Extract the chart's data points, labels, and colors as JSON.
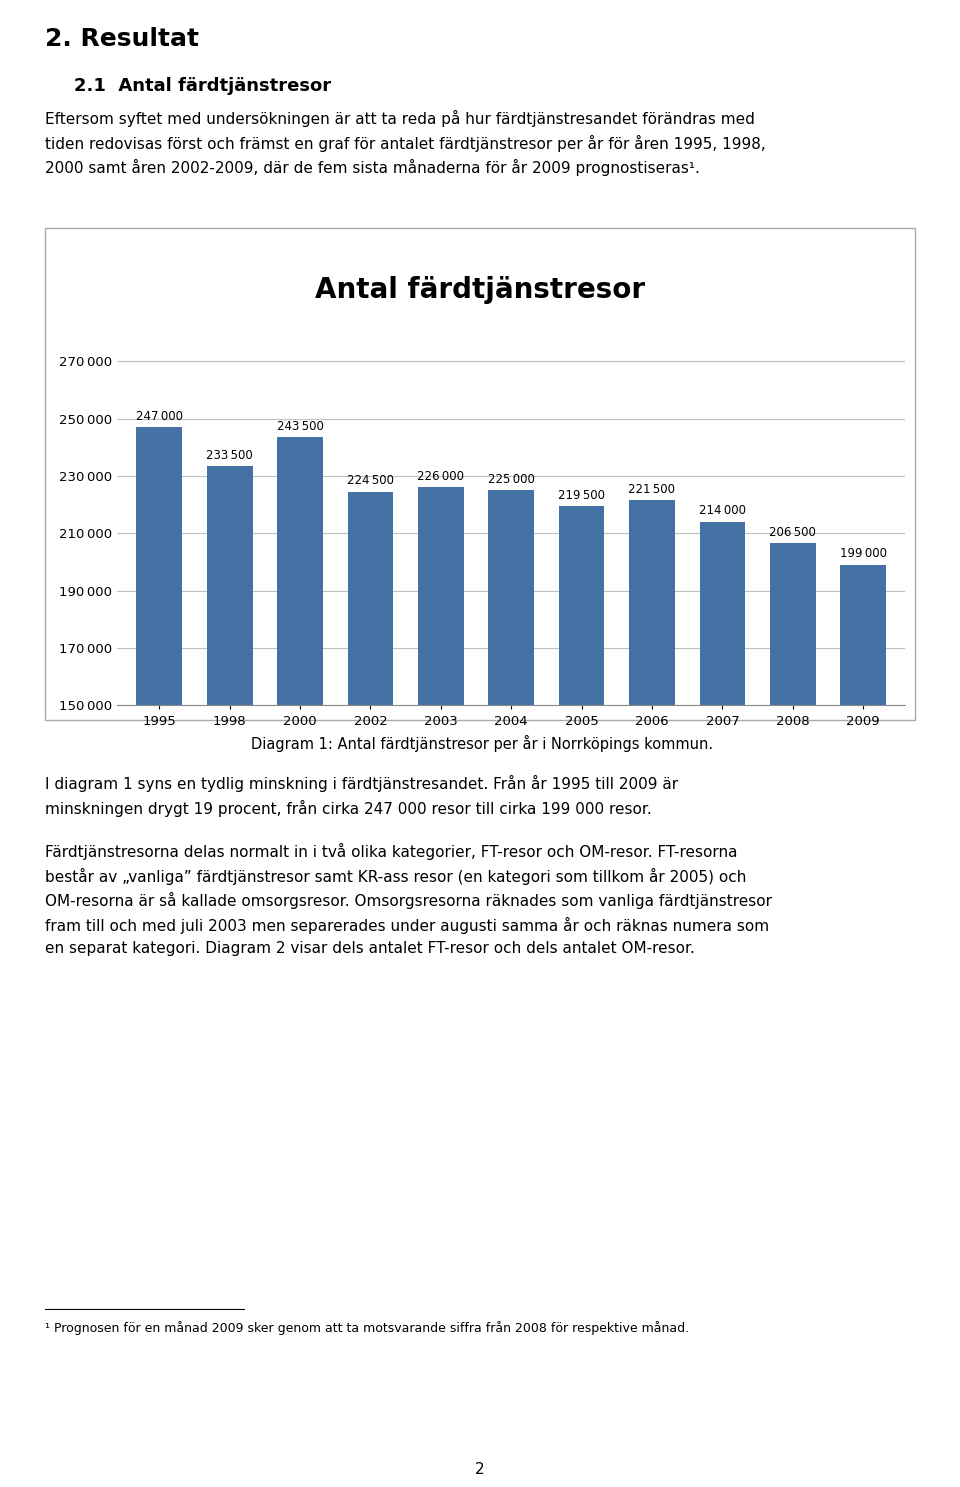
{
  "title": "Antal färdtjänstresor",
  "categories": [
    "1995",
    "1998",
    "2000",
    "2002",
    "2003",
    "2004",
    "2005",
    "2006",
    "2007",
    "2008",
    "2009"
  ],
  "values": [
    247000,
    233500,
    243500,
    224500,
    226000,
    225000,
    219500,
    221500,
    214000,
    206500,
    199000
  ],
  "bar_color": "#4472a4",
  "ylim": [
    150000,
    275000
  ],
  "yticks": [
    150000,
    170000,
    190000,
    210000,
    230000,
    250000,
    270000
  ],
  "background_color": "#ffffff",
  "chart_bg": "#ffffff",
  "grid_color": "#c0c0c0",
  "title_fontsize": 20,
  "caption": "Diagram 1: Antal färdtjänstresor per år i Norrköpings kommun.",
  "heading1": "2. Resultat",
  "heading2": "2.1  Antal färdtjänstresor",
  "body_text": "Eftersom syftet med undersökningen är att ta reda på hur färdtjänstresandet förändras med\ntiden redovisas först och främst en graf för antalet färdtjänstresor per år för åren 1995, 1998,\n2000 samt åren 2002-2009, där de fem sista månaderna för år 2009 prognostiseras¹.",
  "below_text1": "I diagram 1 syns en tydlig minskning i färdtjänstresandet. Från år 1995 till 2009 är\nminskningen drygt 19 procent, från cirka 247 000 resor till cirka 199 000 resor.",
  "below_text2": "Färdtjänstresorna delas normalt in i två olika kategorier, FT-resor och OM-resor. FT-resorna\nbestår av „vanliga” färdtjänstresor samt KR-ass resor (en kategori som tillkom år 2005) och\nOM-resorna är så kallade omsorgsresor. Omsorgsresorna räknades som vanliga färdtjänstresor\nfram till och med juli 2003 men separerades under augusti samma år och räknas numera som\nen separat kategori. Diagram 2 visar dels antalet FT-resor och dels antalet OM-resor.",
  "footnote": "¹ Prognosen för en månad 2009 sker genom att ta motsvarande siffra från 2008 för respektive månad.",
  "page_num": "2"
}
